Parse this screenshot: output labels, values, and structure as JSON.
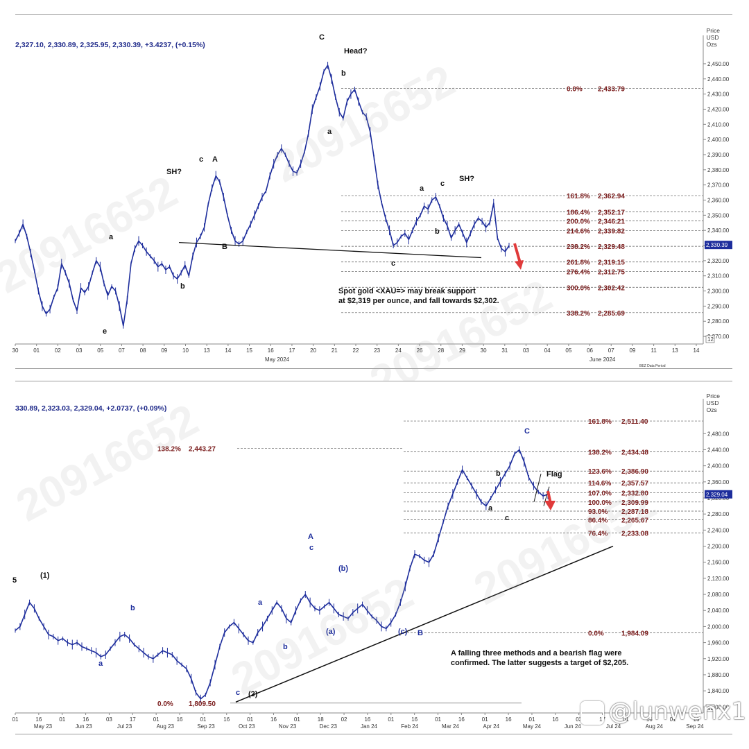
{
  "watermark": "20916652",
  "social_tag": "@lunwenx1",
  "chart_data": [
    {
      "type": "line",
      "header": "2,327.10, 2,330.89, 2,325.95, 2,330.39, +3.4237, (+0.15%)",
      "price_title": [
        "Price",
        "USD",
        "Ozs"
      ],
      "current_price_marker": "2,330.39",
      "footer_note": "BEZ Data Period",
      "x_ticks": [
        "30",
        "01",
        "02",
        "03",
        "05",
        "07",
        "08",
        "09",
        "10",
        "13",
        "14",
        "15",
        "16",
        "17",
        "20",
        "21",
        "22",
        "23",
        "24",
        "26",
        "28",
        "29",
        "30",
        "31",
        "03",
        "04",
        "05",
        "06",
        "07",
        "09",
        "11",
        "13",
        "14"
      ],
      "month_labels": [
        "May 2024",
        "June 2024"
      ],
      "y_ticks": [
        "2,450.00",
        "2,440.00",
        "2,430.00",
        "2,420.00",
        "2,410.00",
        "2,400.00",
        "2,390.00",
        "2,380.00",
        "2,370.00",
        "2,360.00",
        "2,350.00",
        "2,340.00",
        "2,330.00",
        "2,320.00",
        "2,310.00",
        "2,300.00",
        "2,290.00",
        "2,280.00",
        "2,270.00"
      ],
      "y_last_label": "12",
      "ylim": [
        2265,
        2455
      ],
      "series": [
        {
          "values": [
            2333,
            2338,
            2344,
            2336,
            2325,
            2313,
            2300,
            2290,
            2285,
            2288,
            2296,
            2302,
            2318,
            2312,
            2305,
            2294,
            2287,
            2302,
            2299,
            2303,
            2312,
            2320,
            2316,
            2305,
            2297,
            2303,
            2300,
            2290,
            2277,
            2294,
            2318,
            2328,
            2333,
            2330,
            2326,
            2323,
            2320,
            2316,
            2318,
            2314,
            2316,
            2310,
            2308,
            2312,
            2317,
            2310,
            2323,
            2332,
            2336,
            2342,
            2357,
            2368,
            2376,
            2372,
            2362,
            2350,
            2340,
            2333,
            2331,
            2333,
            2339,
            2344,
            2350,
            2356,
            2362,
            2366,
            2376,
            2384,
            2390,
            2394,
            2390,
            2384,
            2379,
            2378,
            2384,
            2392,
            2404,
            2420,
            2428,
            2435,
            2445,
            2449,
            2440,
            2428,
            2418,
            2414,
            2425,
            2430,
            2433,
            2425,
            2418,
            2415,
            2405,
            2388,
            2370,
            2358,
            2348,
            2340,
            2330,
            2332,
            2336,
            2338,
            2334,
            2340,
            2346,
            2350,
            2356,
            2354,
            2360,
            2362,
            2356,
            2348,
            2343,
            2335,
            2340,
            2344,
            2338,
            2332,
            2338,
            2344,
            2348,
            2346,
            2342,
            2345,
            2358,
            2335,
            2328,
            2326,
            2330
          ]
        }
      ],
      "fib_levels": [
        {
          "label": "0.0%",
          "value": 2433.79,
          "text": "2,433.79"
        },
        {
          "label": "161.8%",
          "value": 2362.94,
          "text": "2,362.94"
        },
        {
          "label": "186.4%",
          "value": 2352.17,
          "text": "2,352.17"
        },
        {
          "label": "200.0%",
          "value": 2346.21,
          "text": "2,346.21"
        },
        {
          "label": "214.6%",
          "value": 2339.82,
          "text": "2,339.82"
        },
        {
          "label": "238.2%",
          "value": 2329.48,
          "text": "2,329.48"
        },
        {
          "label": "261.8%",
          "value": 2319.15,
          "text": "2,319.15"
        },
        {
          "label": "276.4%",
          "value": 2312.75,
          "text": "2,312.75"
        },
        {
          "label": "300.0%",
          "value": 2302.42,
          "text": "2,302.42"
        },
        {
          "label": "338.2%",
          "value": 2285.69,
          "text": "2,285.69"
        }
      ],
      "wave_labels": [
        "C",
        "Head?",
        "b",
        "a",
        "c",
        "A",
        "SH?",
        "a",
        "b",
        "e",
        "B",
        "a",
        "c",
        "b",
        "c",
        "SH?"
      ],
      "annotations": [
        "Spot gold <XAU=> may break support",
        "at $2,319 per ounce,  and fall towards $2,302."
      ]
    },
    {
      "type": "line",
      "header": "330.89, 2,323.03, 2,329.04, +2.0737, (+0.09%)",
      "price_title": [
        "Price",
        "USD",
        "Ozs"
      ],
      "current_price_marker": "2,329.04",
      "x_ticks": [
        "01",
        "16",
        "01",
        "16",
        "03",
        "17",
        "01",
        "16",
        "01",
        "16",
        "01",
        "16",
        "01",
        "18",
        "02",
        "16",
        "01",
        "16",
        "01",
        "16",
        "01",
        "16",
        "01",
        "16",
        "03",
        "17",
        "01",
        "16",
        "01",
        "16"
      ],
      "month_labels": [
        "May 23",
        "Jun 23",
        "Jul 23",
        "Aug 23",
        "Sep 23",
        "Oct 23",
        "Nov 23",
        "Dec 23",
        "Jan 24",
        "Feb 24",
        "Mar 24",
        "Apr 24",
        "May 24",
        "Jun 24",
        "Jul 24",
        "Aug 24",
        "Sep 24"
      ],
      "y_ticks": [
        "2,480.00",
        "2,440.00",
        "2,400.00",
        "2,360.00",
        "2,320.00",
        "2,280.00",
        "2,240.00",
        "2,200.00",
        "2,160.00",
        "2,120.00",
        "2,080.00",
        "2,040.00",
        "2,000.00",
        "1,960.00",
        "1,920.00",
        "1,880.00",
        "1,840.00",
        "1,800.00"
      ],
      "y_last_label": "12",
      "ylim": [
        1785,
        2515
      ],
      "series": [
        {
          "values": [
            1990,
            2000,
            2030,
            2060,
            2045,
            2020,
            2000,
            1980,
            1975,
            1965,
            1970,
            1960,
            1955,
            1960,
            1950,
            1945,
            1940,
            1935,
            1925,
            1930,
            1945,
            1960,
            1975,
            1980,
            1970,
            1955,
            1945,
            1935,
            1925,
            1920,
            1930,
            1940,
            1935,
            1930,
            1915,
            1905,
            1895,
            1870,
            1835,
            1820,
            1830,
            1860,
            1905,
            1950,
            1985,
            2000,
            2010,
            1995,
            1980,
            1965,
            1960,
            1985,
            2000,
            2020,
            2040,
            2060,
            2045,
            2020,
            2010,
            2040,
            2065,
            2080,
            2060,
            2045,
            2040,
            2050,
            2060,
            2045,
            2030,
            2025,
            2020,
            2035,
            2045,
            2055,
            2040,
            2025,
            2015,
            2000,
            1995,
            2010,
            2030,
            2060,
            2100,
            2145,
            2180,
            2175,
            2165,
            2160,
            2180,
            2220,
            2260,
            2300,
            2330,
            2360,
            2390,
            2370,
            2350,
            2330,
            2310,
            2300,
            2320,
            2340,
            2360,
            2380,
            2400,
            2430,
            2440,
            2410,
            2370,
            2350,
            2335,
            2325,
            2329
          ]
        }
      ],
      "fib_levels": [
        {
          "label": "161.8%",
          "value": 2511.4,
          "text": "2,511.40"
        },
        {
          "label": "138.2%",
          "value": 2434.48,
          "text": "2,434.48"
        },
        {
          "label": "123.6%",
          "value": 2386.9,
          "text": "2,386.90"
        },
        {
          "label": "114.6%",
          "value": 2357.57,
          "text": "2,357.57"
        },
        {
          "label": "107.0%",
          "value": 2332.8,
          "text": "2,332.80"
        },
        {
          "label": "100.0%",
          "value": 2309.99,
          "text": "2,309.99"
        },
        {
          "label": "93.0%",
          "value": 2287.18,
          "text": "2,287.18"
        },
        {
          "label": "86.4%",
          "value": 2265.67,
          "text": "2,265.67"
        },
        {
          "label": "76.4%",
          "value": 2233.08,
          "text": "2,233.08"
        },
        {
          "label": "0.0%",
          "value": 1984.09,
          "text": "1,984.09"
        }
      ],
      "extra_levels": [
        {
          "label": "138.2%",
          "value": 2443.27,
          "text": "2,443.27"
        },
        {
          "label": "0.0%",
          "value": 1809.5,
          "text": "1,809.50"
        }
      ],
      "wave_labels": [
        "5",
        "(1)",
        "b",
        "a",
        "a",
        "b",
        "c",
        "(2)",
        "A",
        "c",
        "(b)",
        "(a)",
        "(c)",
        "B",
        "C",
        "b",
        "a",
        "c",
        "Flag"
      ],
      "annotations": [
        "A falling three methods and a bearish flag were",
        "confirmed. The latter suggests a target of $2,205."
      ]
    }
  ]
}
